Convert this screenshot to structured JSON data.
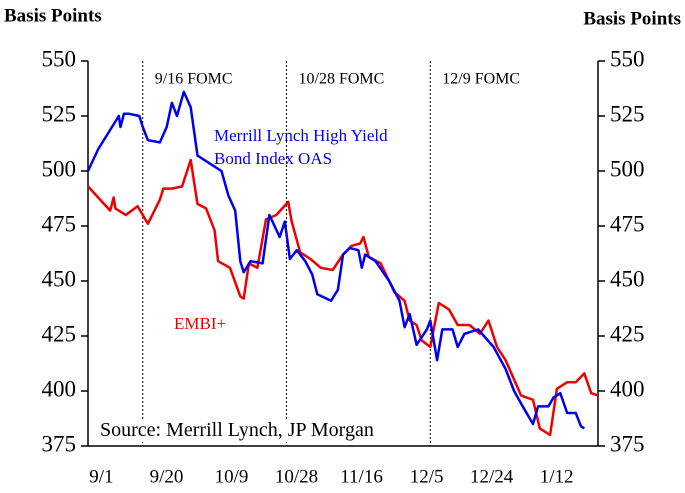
{
  "chart_data": {
    "type": "line",
    "y_label": "Basis Points",
    "y2_label": "Basis Points",
    "xlim": [
      -1,
      148
    ],
    "xticks": [
      {
        "value": 0,
        "label": "9/1"
      },
      {
        "value": 19,
        "label": "9/20"
      },
      {
        "value": 38,
        "label": "10/9"
      },
      {
        "value": 57,
        "label": "10/28"
      },
      {
        "value": 76,
        "label": "11/16"
      },
      {
        "value": 95,
        "label": "12/5"
      },
      {
        "value": 114,
        "label": "12/24"
      },
      {
        "value": 133,
        "label": "1/12"
      }
    ],
    "ylim": [
      375,
      550
    ],
    "yticks": [
      375,
      400,
      425,
      450,
      475,
      500,
      525,
      550
    ],
    "y2lim": [
      375,
      550
    ],
    "y2ticks": [
      375,
      400,
      425,
      450,
      475,
      500,
      525,
      550
    ],
    "events": [
      {
        "label": "9/16  FOMC",
        "x": 15
      },
      {
        "label": "10/28 FOMC",
        "x": 57
      },
      {
        "label": "12/9 FOMC",
        "x": 99
      }
    ],
    "source": "Source: Merrill Lynch, JP Morgan",
    "series": [
      {
        "name": "Merrill Lynch High Yield Bond Index OAS",
        "color": "#0000ee",
        "x": [
          -1,
          2,
          6,
          8,
          8.5,
          9.5,
          11,
          14,
          15,
          16.5,
          20,
          22,
          23.5,
          25,
          27,
          29,
          31,
          35,
          38,
          40,
          42,
          43.5,
          44.5,
          46.5,
          50,
          52,
          55,
          56.5,
          58,
          60,
          62.5,
          64.5,
          66,
          70,
          72,
          73.5,
          75.5,
          78,
          79,
          80,
          83,
          87,
          90,
          91.5,
          93,
          95,
          98,
          99,
          101,
          102.5,
          105.5,
          107,
          109,
          113,
          117.5,
          121,
          123.5,
          126,
          129,
          130.5,
          133.5,
          135,
          137,
          139,
          141.5,
          143,
          144
        ],
        "values": [
          500,
          510,
          520,
          525,
          520,
          526,
          526,
          525,
          520,
          514,
          513,
          520,
          531,
          525,
          536,
          529,
          507,
          503,
          500,
          489,
          482,
          459,
          454,
          459,
          458,
          480,
          470,
          477,
          460,
          464,
          459,
          453,
          444,
          441,
          446,
          462,
          465,
          464,
          456,
          462,
          459,
          450,
          441,
          429,
          435,
          421,
          428,
          432,
          414,
          428,
          428,
          420,
          426,
          428,
          420,
          410,
          400,
          393,
          385,
          393,
          393,
          397,
          399,
          390,
          390,
          384,
          383
        ]
      },
      {
        "name": "EMBI+",
        "color": "#ee0000",
        "x": [
          -1,
          5.5,
          6.5,
          7,
          10,
          13.5,
          16.5,
          20,
          21,
          23.5,
          26.5,
          29,
          31,
          33.5,
          36,
          37,
          40.5,
          43.5,
          44.5,
          46,
          48.5,
          51,
          54,
          57.5,
          58.5,
          61,
          64,
          67,
          70.5,
          73.5,
          76,
          78.5,
          79.5,
          81,
          84.5,
          88.5,
          91.5,
          93,
          95,
          96.5,
          99,
          101.5,
          104.5,
          107,
          110.5,
          113.5,
          116,
          118.5,
          121,
          123,
          125.5,
          129,
          131,
          134,
          136,
          139,
          141.5,
          144,
          146,
          148
        ],
        "values": [
          493,
          482,
          488,
          483,
          480,
          484,
          476,
          487,
          492,
          492,
          493,
          505,
          485,
          483,
          473,
          459,
          456,
          443,
          442,
          458,
          456,
          478,
          480,
          486,
          477,
          463,
          460,
          456,
          455,
          462,
          466,
          467,
          470,
          461,
          458,
          445,
          441,
          432,
          430,
          423,
          420,
          440,
          437,
          430,
          430,
          426,
          432,
          420,
          414,
          407,
          398,
          396,
          383,
          380,
          401,
          404,
          404,
          408,
          399,
          398
        ]
      }
    ]
  }
}
